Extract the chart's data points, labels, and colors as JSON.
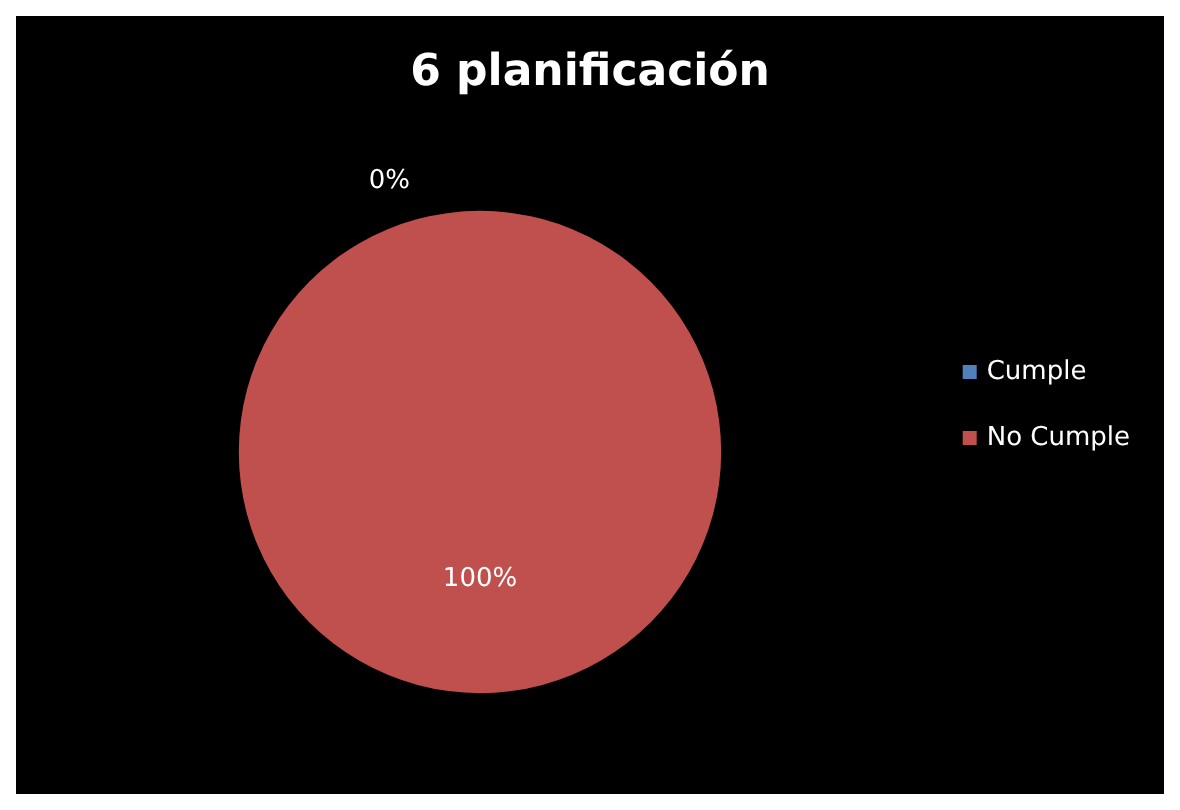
{
  "chart_data": {
    "type": "pie",
    "title": "6 planificación",
    "categories": [
      "Cumple",
      "No Cumple"
    ],
    "values": [
      0,
      100
    ],
    "colors": [
      "#4f81bd",
      "#c0504d"
    ],
    "value_labels": [
      "0%",
      "100%"
    ],
    "legend": "right"
  }
}
